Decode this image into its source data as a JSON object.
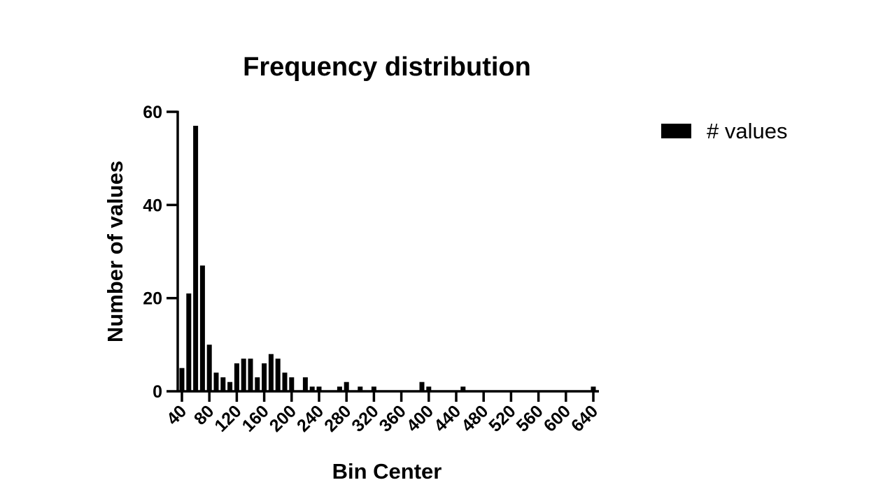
{
  "chart_data": {
    "type": "bar",
    "title": "Frequency distribution",
    "xlabel": "Bin Center",
    "ylabel": "Number of values",
    "xlim": [
      35,
      645
    ],
    "ylim": [
      0,
      60
    ],
    "x_ticks": [
      40,
      80,
      120,
      160,
      200,
      240,
      280,
      320,
      360,
      400,
      440,
      480,
      520,
      560,
      600,
      640
    ],
    "y_ticks": [
      0,
      20,
      40,
      60
    ],
    "bin_width": 10,
    "bar_color": "#000000",
    "legend_position": "top-right",
    "grid": false,
    "series": [
      {
        "name": "# values",
        "x": [
          40,
          50,
          60,
          70,
          80,
          90,
          100,
          110,
          120,
          130,
          140,
          150,
          160,
          170,
          180,
          190,
          200,
          220,
          230,
          240,
          270,
          280,
          300,
          320,
          390,
          400,
          450,
          640
        ],
        "values": [
          5,
          21,
          57,
          27,
          10,
          4,
          3,
          2,
          6,
          7,
          7,
          3,
          6,
          8,
          7,
          4,
          3,
          3,
          1,
          1,
          1,
          2,
          1,
          1,
          2,
          1,
          1,
          1
        ]
      }
    ]
  }
}
